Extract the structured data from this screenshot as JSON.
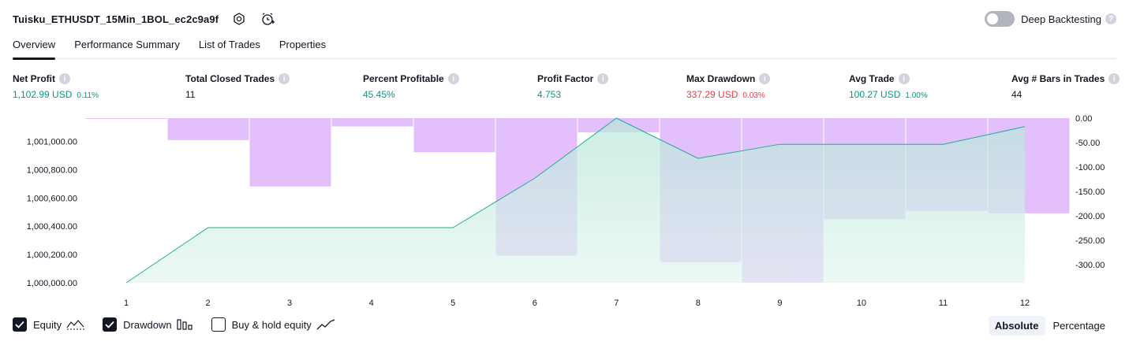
{
  "strategy_title": "Tuisku_ETHUSDT_15Min_1BOL_ec2c9a9f",
  "header_icons": [
    "settings-icon",
    "alert-icon"
  ],
  "deep_backtesting": {
    "label": "Deep Backtesting",
    "enabled": false,
    "help": "?"
  },
  "tabs": [
    "Overview",
    "Performance Summary",
    "List of Trades",
    "Properties"
  ],
  "active_tab": "Overview",
  "info_glyph": "i",
  "metrics": [
    {
      "label": "Net Profit",
      "value": "1,102.99 USD",
      "sub": "0.11%",
      "color": "green"
    },
    {
      "label": "Total Closed Trades",
      "value": "11",
      "sub": "",
      "color": "dark"
    },
    {
      "label": "Percent Profitable",
      "value": "45.45%",
      "sub": "",
      "color": "green"
    },
    {
      "label": "Profit Factor",
      "value": "4.753",
      "sub": "",
      "color": "green"
    },
    {
      "label": "Max Drawdown",
      "value": "337.29 USD",
      "sub": "0.03%",
      "color": "red"
    },
    {
      "label": "Avg Trade",
      "value": "100.27 USD",
      "sub": "1.00%",
      "color": "green"
    },
    {
      "label": "Avg # Bars in Trades",
      "value": "44",
      "sub": "",
      "color": "dark"
    }
  ],
  "colors": {
    "green": "#089981",
    "red": "#f23645",
    "dark": "#131722",
    "equity_line": "#22ab94",
    "drawdown_bar": "#e1bdfc"
  },
  "chart_data": {
    "type": "line+bar",
    "x_ticks": [
      "1",
      "2",
      "3",
      "4",
      "5",
      "6",
      "7",
      "8",
      "9",
      "10",
      "11",
      "12"
    ],
    "left_axis": {
      "ticks": [
        "1,000,000.00",
        "1,000,200.00",
        "1,000,400.00",
        "1,000,600.00",
        "1,000,800.00",
        "1,001,000.00"
      ],
      "range": [
        1000000,
        1001165
      ]
    },
    "right_axis": {
      "ticks": [
        "0.00",
        "-50.00",
        "-100.00",
        "-150.00",
        "-200.00",
        "-250.00",
        "-300.00"
      ],
      "range": [
        -337.29,
        0
      ]
    },
    "series": [
      {
        "name": "Equity",
        "axis": "left",
        "values": [
          1000000,
          1000390,
          1000390,
          1000390,
          1000390,
          1000740,
          1001165,
          1000880,
          1000980,
          1000980,
          1000980,
          1001105
        ]
      },
      {
        "name": "Drawdown",
        "axis": "right",
        "values": [
          0,
          -45,
          -140,
          -17,
          -70,
          -282,
          -29,
          -295,
          -337.29,
          -207,
          -190,
          -195
        ]
      }
    ]
  },
  "legend": [
    {
      "label": "Equity",
      "checked": true,
      "icon": "equity-line-icon"
    },
    {
      "label": "Drawdown",
      "checked": true,
      "icon": "drawdown-bars-icon"
    },
    {
      "label": "Buy & hold equity",
      "checked": false,
      "icon": "buy-hold-line-icon"
    }
  ],
  "scale_modes": [
    "Absolute",
    "Percentage"
  ],
  "active_scale_mode": "Absolute"
}
